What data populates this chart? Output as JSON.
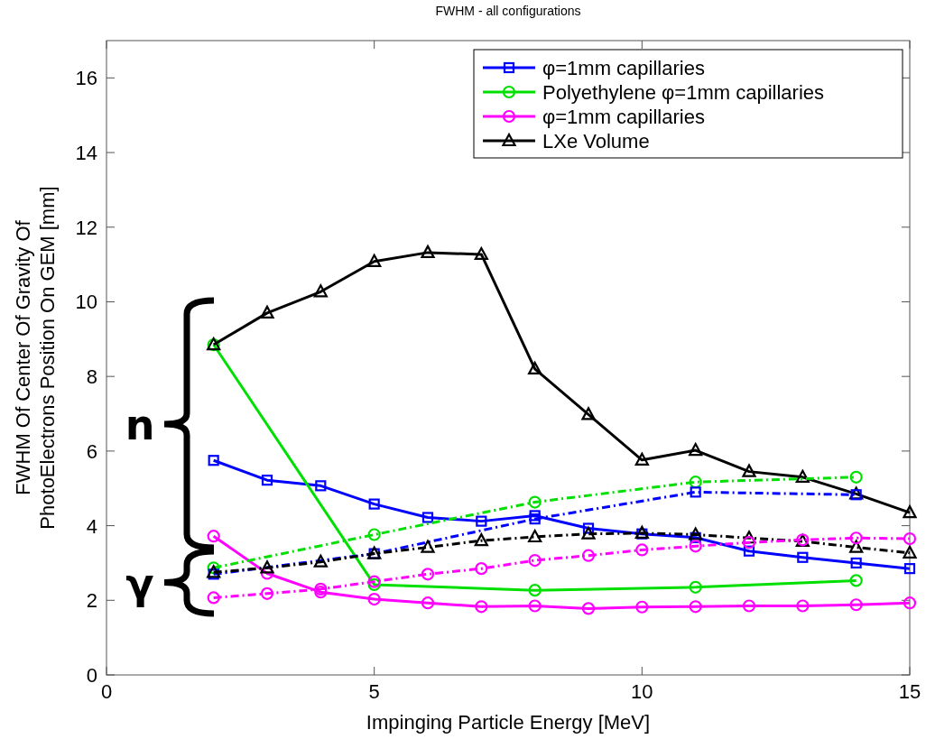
{
  "chart_data": {
    "type": "line",
    "title": "FWHM - all configurations",
    "xlabel": "Impinging Particle Energy [MeV]",
    "ylabel": "FWHM Of Center Of Gravity Of\nPhotoElectrons Position On GEM [mm]",
    "annotations": [
      "n",
      "γ"
    ],
    "xlim": [
      0,
      15
    ],
    "xticks": [
      0,
      5,
      10,
      15
    ],
    "ylim": [
      0,
      17
    ],
    "yticks": [
      0,
      2,
      4,
      6,
      8,
      10,
      12,
      14,
      16
    ],
    "legend": "top right",
    "series": [
      {
        "name": "φ=1mm capillaries",
        "color": "#0000ff",
        "marker": "square",
        "line_style": "solid",
        "x": [
          2,
          3,
          4,
          5,
          6,
          7,
          8,
          9,
          10,
          11,
          12,
          13,
          14,
          15
        ],
        "values": [
          5.75,
          5.22,
          5.07,
          4.58,
          4.22,
          4.12,
          4.27,
          3.93,
          3.78,
          3.68,
          3.32,
          3.15,
          3.0,
          2.85
        ]
      },
      {
        "name": "Polyethylene φ=1mm capillaries",
        "color": "#00e000",
        "marker": "circle",
        "line_style": "solid",
        "x": [
          2,
          5,
          8,
          11,
          14
        ],
        "values": [
          8.85,
          2.42,
          2.27,
          2.35,
          2.53
        ]
      },
      {
        "name": "φ=1mm capillaries",
        "color": "#ff00ff",
        "marker": "circle",
        "line_style": "solid",
        "x": [
          2,
          3,
          4,
          5,
          6,
          7,
          8,
          9,
          10,
          11,
          12,
          13,
          14,
          15
        ],
        "values": [
          3.72,
          2.72,
          2.22,
          2.03,
          1.93,
          1.83,
          1.85,
          1.78,
          1.82,
          1.83,
          1.85,
          1.85,
          1.88,
          1.93
        ]
      },
      {
        "name": "LXe Volume",
        "color": "#000000",
        "marker": "triangle",
        "line_style": "solid",
        "x": [
          2,
          3,
          4,
          5,
          6,
          7,
          8,
          9,
          10,
          11,
          12,
          13,
          14,
          15
        ],
        "values": [
          8.85,
          9.7,
          10.27,
          11.08,
          11.32,
          11.27,
          8.2,
          6.98,
          5.76,
          6.02,
          5.45,
          5.3,
          4.85,
          4.35
        ]
      },
      {
        "color": "#00e000",
        "marker": "circle",
        "line_style": "dashed",
        "x": [
          2,
          5,
          8,
          11,
          14
        ],
        "values": [
          2.87,
          3.76,
          4.63,
          5.17,
          5.3
        ]
      },
      {
        "color": "#0000ff",
        "marker": "square",
        "line_style": "dashed",
        "x": [
          2,
          5,
          8,
          11,
          14
        ],
        "values": [
          2.7,
          3.25,
          4.18,
          4.9,
          4.83
        ]
      },
      {
        "color": "#000000",
        "marker": "triangle",
        "line_style": "dashed",
        "x": [
          2,
          3,
          4,
          5,
          6,
          7,
          8,
          9,
          10,
          11,
          12,
          13,
          14,
          15
        ],
        "values": [
          2.75,
          2.87,
          3.03,
          3.25,
          3.42,
          3.6,
          3.7,
          3.78,
          3.8,
          3.76,
          3.67,
          3.58,
          3.42,
          3.27
        ]
      },
      {
        "color": "#ff00ff",
        "marker": "circle",
        "line_style": "dashed",
        "x": [
          2,
          3,
          4,
          5,
          6,
          7,
          8,
          9,
          10,
          11,
          12,
          13,
          14,
          15
        ],
        "values": [
          2.07,
          2.18,
          2.3,
          2.5,
          2.7,
          2.85,
          3.07,
          3.2,
          3.35,
          3.45,
          3.55,
          3.62,
          3.67,
          3.65
        ]
      }
    ]
  }
}
